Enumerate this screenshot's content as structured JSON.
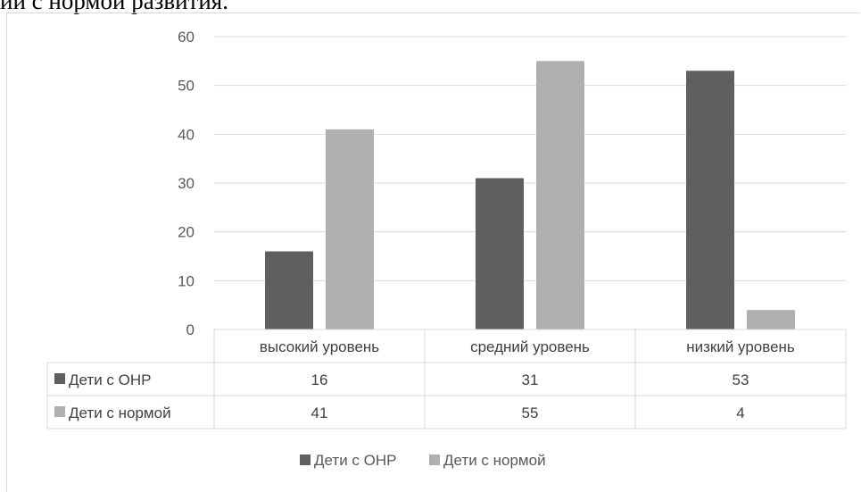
{
  "caption": "ии с нормой развития.",
  "chart_data": {
    "type": "bar",
    "categories": [
      "высокий уровень",
      "средний уровень",
      "низкий уровень"
    ],
    "series": [
      {
        "name": "Дети с ОНР",
        "values": [
          16,
          31,
          53
        ],
        "color": "#5f5f5f"
      },
      {
        "name": "Дети с нормой",
        "values": [
          41,
          55,
          4
        ],
        "color": "#b0b0b0"
      }
    ],
    "ylim": [
      0,
      60
    ],
    "yticks": [
      "0",
      "10",
      "20",
      "30",
      "40",
      "50",
      "60"
    ],
    "grid": true,
    "legend_placement": "bottom",
    "data_table": true
  }
}
